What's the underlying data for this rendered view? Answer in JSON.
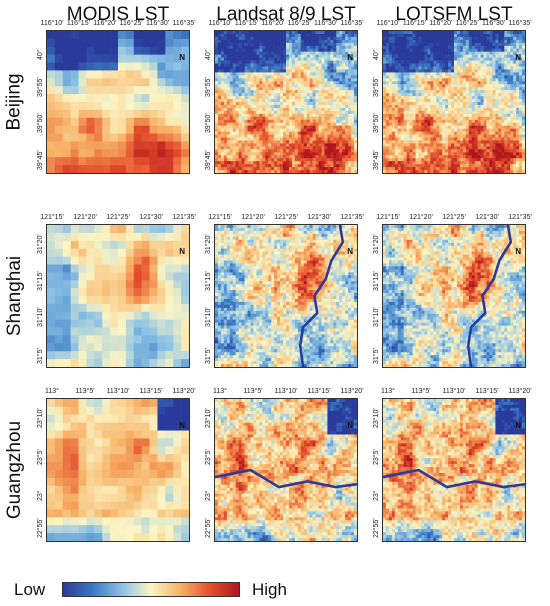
{
  "columns": [
    {
      "key": "modis",
      "title": "MODIS LST"
    },
    {
      "key": "landsat",
      "title": "Landsat 8/9 LST"
    },
    {
      "key": "lotsfm",
      "title": "LOTSFM LST"
    }
  ],
  "rows": [
    {
      "city": "Beijing",
      "lon_ticks": [
        "116°10'",
        "116°15'",
        "116°20'",
        "116°25'",
        "116°30'",
        "116°35'"
      ],
      "lat_ticks": [
        "40°",
        "39°55'",
        "39°50'",
        "39°45'"
      ]
    },
    {
      "city": "Shanghai",
      "lon_ticks": [
        "121°15'",
        "121°20'",
        "121°25'",
        "121°30'",
        "121°35'"
      ],
      "lat_ticks": [
        "31°20'",
        "31°15'",
        "31°10'",
        "31°5'"
      ]
    },
    {
      "city": "Guangzhou",
      "lon_ticks": [
        "113°",
        "113°5'",
        "113°10'",
        "113°15'",
        "113°20'"
      ],
      "lat_ticks": [
        "23°10'",
        "23°5'",
        "23°",
        "22°55'"
      ]
    }
  ],
  "north_label": "N",
  "legend": {
    "low_label": "Low",
    "high_label": "High",
    "colors": [
      "#2a3a9b",
      "#3b78c2",
      "#8cc2e6",
      "#fbf5c4",
      "#f7b267",
      "#e5512e",
      "#b0141c"
    ]
  }
}
